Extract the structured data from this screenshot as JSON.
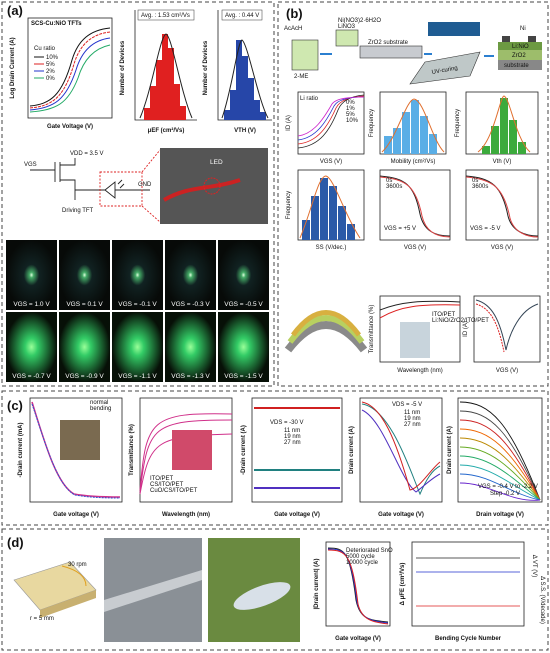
{
  "a": {
    "label": "(a)",
    "transfer": {
      "title": "SCS-Cu:NiO TFTs",
      "ylabel": "Log Drain Current (A)",
      "xlabel": "Gate Voltage (V)",
      "legend_title": "Cu ratio",
      "legend": [
        "10%",
        "5%",
        "2%",
        "0%"
      ]
    },
    "mobility": {
      "avg": "Avg. : 1.53 cm²/Vs",
      "ylabel": "Number of Devices",
      "xlabel": "μEF (cm²/Vs)"
    },
    "vth": {
      "avg": "Avg. : 0.44 V",
      "ylabel": "Number of Devices",
      "xlabel": "VTH (V)"
    },
    "circuit": {
      "vgs": "VGS",
      "vdd": "VDD = 3.5 V",
      "tft": "Driving TFT",
      "gnd": "GND",
      "led": "LED"
    },
    "photos": [
      "VGS = 1.0 V",
      "VGS = 0.1 V",
      "VGS = -0.1 V",
      "VGS = -0.3 V",
      "VGS = -0.5 V",
      "VGS = -0.7 V",
      "VGS = -0.9 V",
      "VGS = -1.1 V",
      "VGS = -1.3 V",
      "VGS = -1.5 V"
    ]
  },
  "b": {
    "label": "(b)",
    "process": [
      "AcAcH",
      "Ni(NO3)2·6H2O",
      "LiNO3",
      "2-ME",
      "ZrO2 substrate",
      "UV-curing",
      "Ni",
      "Li:NiO",
      "ZrO2",
      "substrate"
    ],
    "transfer": {
      "legend_title": "Li ratio",
      "legend": [
        "0%",
        "1%",
        "5%",
        "10%"
      ],
      "xlabel": "VGS (V)",
      "ylabel": "ID (A)"
    },
    "mobility": {
      "xlabel": "Mobility (cm²/Vs)",
      "ylabel": "Frequency"
    },
    "vth": {
      "xlabel": "Vth (V)",
      "ylabel": "Frequency"
    },
    "ss": {
      "xlabel": "SS (V/dec.)",
      "ylabel": "Frequency"
    },
    "stress_pos": {
      "legend": [
        "0s",
        "3600s"
      ],
      "note": "VGS = +5 V",
      "xlabel": "VGS (V)"
    },
    "stress_neg": {
      "legend": [
        "0s",
        "3600s"
      ],
      "note": "VGS = -5 V",
      "xlabel": "VGS (V)"
    },
    "trans": {
      "legend": [
        "ITO/PET",
        "Li:NiO/ZrO2/ITO/PET"
      ],
      "xlabel": "Wavelength (nm)",
      "ylabel": "Transmittance (%)"
    },
    "ig": {
      "xlabel": "VGS (V)",
      "ylabel": "ID (A)"
    }
  },
  "c": {
    "label": "(c)",
    "p1": {
      "ylabel": "-Drain current (mA)",
      "xlabel": "Gate voltage (V)",
      "legend": [
        "normal",
        "bending"
      ]
    },
    "p2": {
      "ylabel": "Transmittance (%)",
      "xlabel": "Wavelength (nm)",
      "legend": [
        "ITO/PET",
        "CS/ITO/PET",
        "CuO/CS/ITO/PET"
      ]
    },
    "p3": {
      "ylabel": "-Drain current (A)",
      "xlabel": "Gate voltage (V)",
      "note": "VDS = -30 V",
      "legend": [
        "11 nm",
        "19 nm",
        "27 nm"
      ]
    },
    "p4": {
      "ylabel": "Drain current (A)",
      "xlabel": "Gate voltage (V)",
      "note": "VDS = -5 V",
      "legend": [
        "11 nm",
        "19 nm",
        "27 nm"
      ]
    },
    "p5": {
      "ylabel": "Drain current (A)",
      "xlabel": "Drain voltage (V)",
      "note": "VGS = -0.4 V to -2.2 V",
      "step": "Step -0.2 V"
    }
  },
  "d": {
    "label": "(d)",
    "speed": "30 rpm",
    "radius": "r = 5 mm",
    "p1": {
      "legend": [
        "Deteriorated SnO",
        "5000 cycle",
        "10000 cycle"
      ],
      "ylabel": "|Drain current| (A)",
      "xlabel": "Gate voltage (V)"
    },
    "p2": {
      "xlabel": "Bending Cycle Number",
      "ylabel": "Δ μFE (cm²/Vs)",
      "y2label": "Δ VT (V)",
      "y3label": "Δ S.S. (V/decade)"
    }
  }
}
